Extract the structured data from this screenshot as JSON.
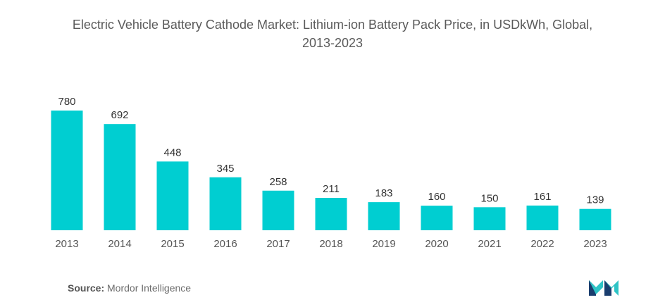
{
  "chart_data": {
    "type": "bar",
    "title_line1": "Electric Vehicle Battery Cathode Market: Lithium-ion Battery Pack Price, in USDkWh, Global,",
    "title_line2": "2013-2023",
    "categories": [
      "2013",
      "2014",
      "2015",
      "2016",
      "2017",
      "2018",
      "2019",
      "2020",
      "2021",
      "2022",
      "2023"
    ],
    "values": [
      780,
      692,
      448,
      345,
      258,
      211,
      183,
      160,
      150,
      161,
      139
    ],
    "bar_color": "#00CED1",
    "xlabel": "",
    "ylabel": "",
    "ylim": [
      0,
      780
    ],
    "grid": false,
    "legend": "none"
  },
  "source": {
    "label": "Source:",
    "text": "Mordor Intelligence"
  },
  "logo": {
    "icon": "mordor-intelligence-logo-icon",
    "colors": [
      "#1a3d6e",
      "#2ec4c6"
    ]
  }
}
